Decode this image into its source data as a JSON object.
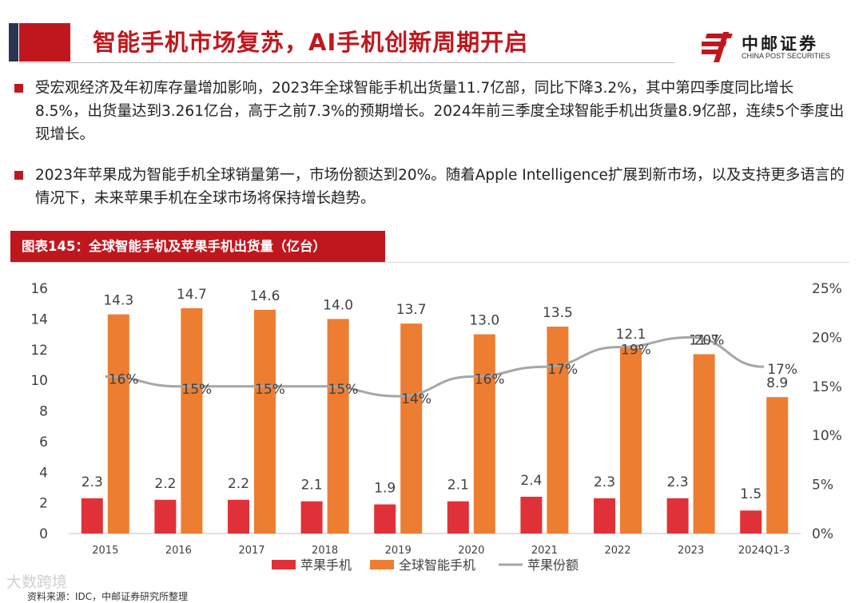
{
  "header": {
    "title": "智能手机市场复苏，AI手机创新周期开启",
    "logo_cn": "中邮证券",
    "logo_en": "CHINA POST SECURITIES"
  },
  "bullets": [
    "受宏观经济及年初库存量增加影响，2023年全球智能手机出货量11.7亿部，同比下降3.2%，其中第四季度同比增长8.5%，出货量达到3.261亿台，高于之前7.3%的预期增长。2024年前三季度全球智能手机出货量8.9亿部，连续5个季度出现增长。",
    "2023年苹果成为智能手机全球销量第一，市场份额达到20%。随着Apple Intelligence扩展到新市场，以及支持更多语言的情况下，未来苹果手机在全球市场将保持增长趋势。"
  ],
  "chart_label": "图表145：全球智能手机及苹果手机出货量（亿台）",
  "watermark": "大数跨境",
  "source": "资料来源：IDC，中邮证券研究所整理",
  "colors": {
    "brand_red": "#c0171e",
    "apple_bar": "#e03138",
    "global_bar": "#ed7d31",
    "share_line": "#a6a6a6"
  },
  "chart_data": {
    "type": "bar",
    "title": "图表145：全球智能手机及苹果手机出货量（亿台）",
    "categories": [
      "2015",
      "2016",
      "2017",
      "2018",
      "2019",
      "2020",
      "2021",
      "2022",
      "2023",
      "2024Q1-3"
    ],
    "series": [
      {
        "name": "苹果手机",
        "type": "bar",
        "axis": "left",
        "values": [
          2.3,
          2.2,
          2.2,
          2.1,
          1.9,
          2.1,
          2.4,
          2.3,
          2.3,
          1.5
        ]
      },
      {
        "name": "全球智能手机",
        "type": "bar",
        "axis": "left",
        "values": [
          14.3,
          14.7,
          14.6,
          14.0,
          13.7,
          13.0,
          13.5,
          12.1,
          11.7,
          8.9
        ]
      },
      {
        "name": "苹果份额",
        "type": "line",
        "axis": "right",
        "values": [
          16,
          15,
          15,
          15,
          14,
          16,
          17,
          19,
          20,
          17
        ]
      }
    ],
    "ylim": [
      0,
      16
    ],
    "yticks": [
      0,
      2,
      4,
      6,
      8,
      10,
      12,
      14,
      16
    ],
    "y2lim": [
      0,
      25
    ],
    "y2ticks": [
      "0%",
      "5%",
      "10%",
      "15%",
      "20%",
      "25%"
    ],
    "legend_position": "bottom"
  }
}
